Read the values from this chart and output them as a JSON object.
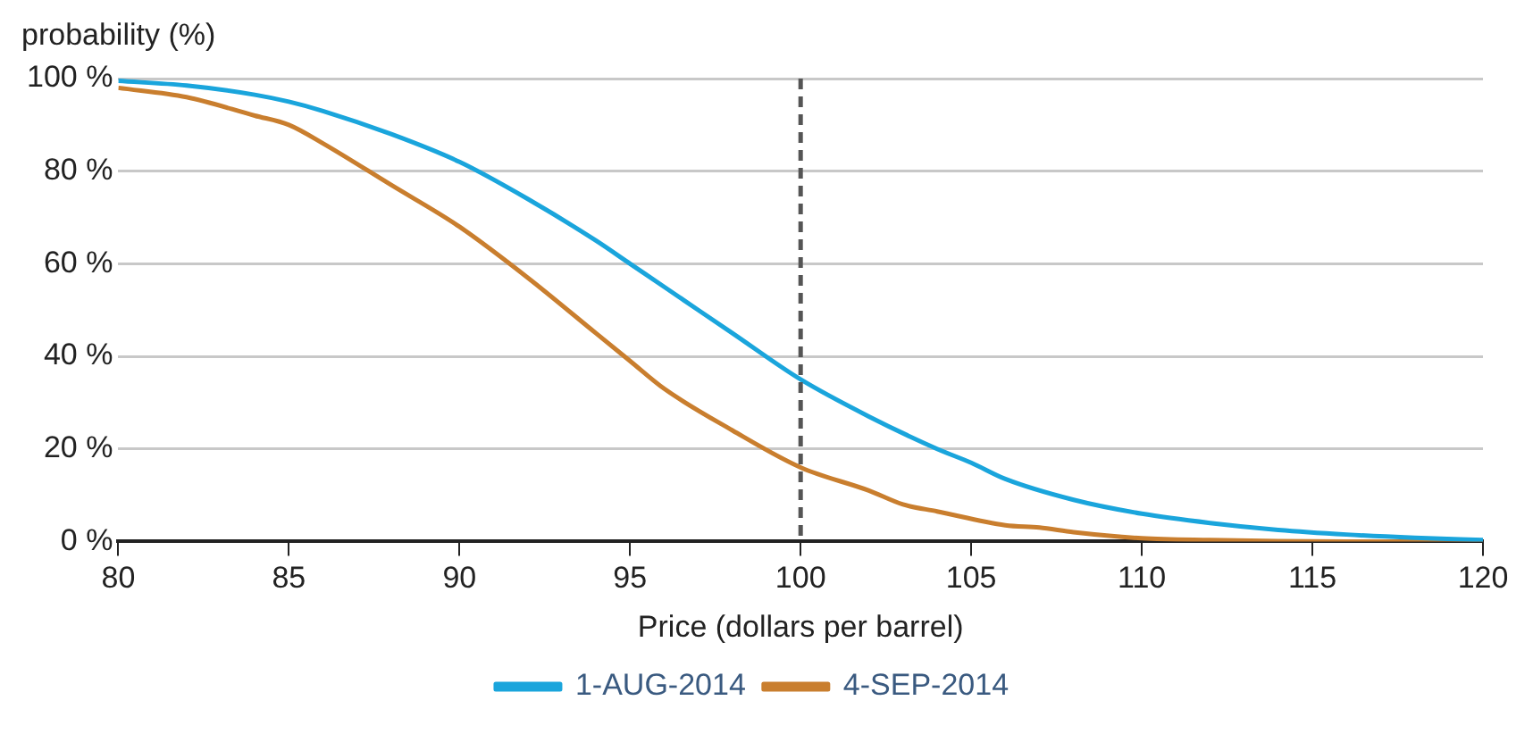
{
  "chart_data": {
    "type": "line",
    "ylabel": "probability (%)",
    "xlabel": "Price (dollars per barrel)",
    "xlim": [
      80,
      120
    ],
    "xticks": [
      80,
      85,
      90,
      95,
      100,
      105,
      110,
      115,
      120
    ],
    "ylim": [
      0,
      100
    ],
    "yticks": [
      {
        "value": 0,
        "label": "0 %"
      },
      {
        "value": 20,
        "label": "20 %"
      },
      {
        "value": 40,
        "label": "40 %"
      },
      {
        "value": 60,
        "label": "60 %"
      },
      {
        "value": 80,
        "label": "80 %"
      },
      {
        "value": 100,
        "label": "100 %"
      }
    ],
    "grid": "y",
    "legend": "bottom",
    "marker": "none",
    "line_style": "solid",
    "ref_lines": [
      {
        "axis": "x",
        "value": 100,
        "color": "#555555",
        "line_style": "dashed"
      }
    ],
    "series": [
      {
        "name": "1-AUG-2014",
        "color": "#1aa5dc",
        "x": [
          80,
          82,
          84,
          85,
          86,
          88,
          90,
          92,
          94,
          95,
          96,
          98,
          100,
          102,
          104,
          105,
          106,
          108,
          110,
          112,
          114,
          116,
          118,
          120
        ],
        "values": [
          99.5,
          98.5,
          96.5,
          95,
          93,
          88,
          82,
          74,
          65,
          60,
          55,
          45,
          35,
          27,
          20,
          17,
          13.5,
          9,
          6,
          4,
          2.5,
          1.5,
          0.8,
          0.3
        ]
      },
      {
        "name": "4-SEP-2014",
        "color": "#c97e2e",
        "x": [
          80,
          82,
          84,
          85,
          86,
          88,
          90,
          92,
          94,
          95,
          96,
          98,
          100,
          102,
          103,
          104,
          106,
          107,
          108,
          110,
          112,
          114,
          116,
          120
        ],
        "values": [
          98,
          96,
          92,
          90,
          86,
          77,
          68,
          57,
          45,
          39,
          33,
          24,
          16,
          11,
          8,
          6.5,
          3.5,
          3,
          2,
          0.7,
          0.3,
          0.1,
          0,
          0
        ]
      }
    ]
  }
}
